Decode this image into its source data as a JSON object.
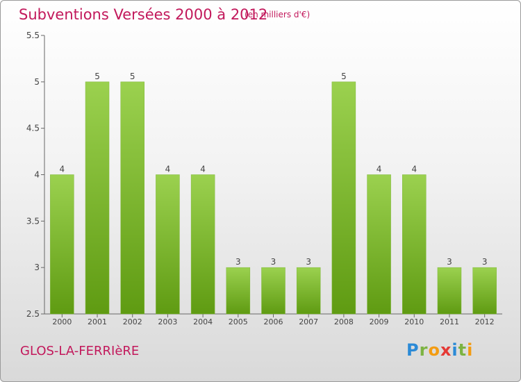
{
  "header": {
    "title": "Subventions Versées 2000 à 2012",
    "unit": "(en milliers d'€)"
  },
  "footer": {
    "town": "GLOS-LA-FERRIèRE"
  },
  "logo": {
    "letters": [
      "P",
      "r",
      "o",
      "x",
      "i",
      "t",
      "i"
    ],
    "colors": [
      "#2b8ad6",
      "#7cb342",
      "#f39c12",
      "#e53935",
      "#2b8ad6",
      "#7cb342",
      "#f39c12"
    ]
  },
  "colors": {
    "bar_light": "#9bd14f",
    "bar_dark": "#5f9b12",
    "accent": "#c2185b"
  },
  "chart_data": {
    "type": "bar",
    "title": "Subventions Versées 2000 à 2012",
    "categories": [
      "2000",
      "2001",
      "2002",
      "2003",
      "2004",
      "2005",
      "2006",
      "2007",
      "2008",
      "2009",
      "2010",
      "2011",
      "2012"
    ],
    "values": [
      4,
      5,
      5,
      4,
      4,
      3,
      3,
      3,
      5,
      4,
      4,
      3,
      3
    ],
    "data_labels": [
      "4",
      "5",
      "5",
      "4",
      "4",
      "3",
      "3",
      "3",
      "5",
      "4",
      "4",
      "3",
      "3"
    ],
    "yticks": [
      "2.5",
      "3",
      "3.5",
      "4",
      "4.5",
      "5",
      "5.5"
    ],
    "ylim": [
      2.5,
      5.5
    ],
    "xlabel": "",
    "ylabel": "",
    "grid": false
  }
}
